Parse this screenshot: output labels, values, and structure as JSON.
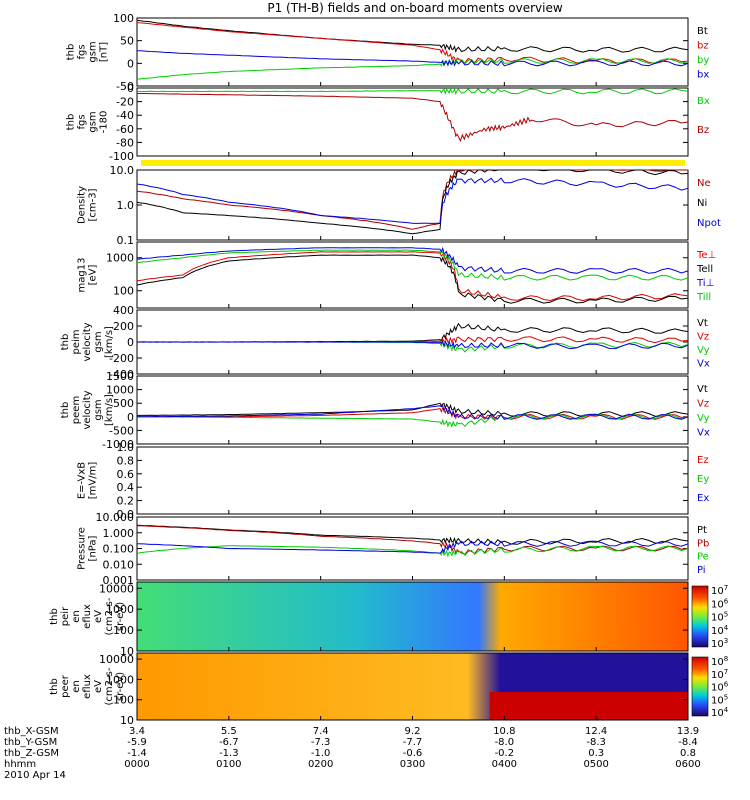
{
  "title": "P1 (TH-B) fields and on-board moments overview",
  "colors": {
    "black": "#000000",
    "red": "#dd0000",
    "green": "#00cc00",
    "blue": "#0000dd",
    "darkred": "#aa0000",
    "yellow": "#ffee00"
  },
  "footer": {
    "row_labels": [
      "thb_X-GSM",
      "thb_Y-GSM",
      "thb_Z-GSM",
      "hhmm",
      "2010 Apr 14"
    ],
    "columns": [
      {
        "x": "3.4",
        "y": "-5.9",
        "z": "-1.4",
        "t": "0000"
      },
      {
        "x": "5.5",
        "y": "-6.7",
        "z": "-1.3",
        "t": "0100"
      },
      {
        "x": "7.4",
        "y": "-7.3",
        "z": "-1.0",
        "t": "0200"
      },
      {
        "x": "9.2",
        "y": "-7.7",
        "z": "-0.6",
        "t": "0300"
      },
      {
        "x": "10.8",
        "y": "-8.0",
        "z": "-0.2",
        "t": "0400"
      },
      {
        "x": "12.4",
        "y": "-8.3",
        "z": "0.3",
        "t": "0500"
      },
      {
        "x": "13.9",
        "y": "-8.4",
        "z": "0.8",
        "t": "0600"
      }
    ]
  },
  "colorbar_ticks": [
    "10",
    "10",
    "10",
    "10",
    "10"
  ],
  "colorbar_exps_a": [
    "7",
    "6",
    "5",
    "4",
    "3"
  ],
  "colorbar_exps_b": [
    "8",
    "7",
    "6",
    "5",
    "4"
  ],
  "chart_data": [
    {
      "type": "line",
      "ylabel": [
        "thb",
        "fgs",
        "gsm",
        "[nT]"
      ],
      "ylim": [
        -50,
        100
      ],
      "yticks": [
        "100",
        "50",
        "0",
        "-50"
      ],
      "legend": [
        {
          "name": "Bt",
          "color": "#000000"
        },
        {
          "name": "bz",
          "color": "#dd0000"
        },
        {
          "name": "by",
          "color": "#00cc00"
        },
        {
          "name": "bx",
          "color": "#0000dd"
        }
      ],
      "series": [
        {
          "name": "Bt",
          "x": [
            0,
            0.5,
            1,
            2,
            3,
            3.3,
            3.5,
            4,
            5,
            6
          ],
          "y": [
            95,
            82,
            72,
            55,
            42,
            40,
            30,
            32,
            30,
            30
          ]
        },
        {
          "name": "bz",
          "x": [
            0,
            0.5,
            1,
            2,
            3,
            3.3,
            3.5,
            4,
            5,
            6
          ],
          "y": [
            90,
            80,
            70,
            55,
            40,
            30,
            5,
            10,
            5,
            5
          ]
        },
        {
          "name": "by",
          "x": [
            0,
            0.5,
            1,
            2,
            3,
            3.3,
            3.5,
            4,
            5,
            6
          ],
          "y": [
            -35,
            -25,
            -18,
            -10,
            -5,
            -2,
            5,
            5,
            5,
            5
          ]
        },
        {
          "name": "bx",
          "x": [
            0,
            0.5,
            1,
            2,
            3,
            3.3,
            3.5,
            4,
            5,
            6
          ],
          "y": [
            28,
            22,
            18,
            10,
            5,
            2,
            0,
            0,
            0,
            0
          ]
        }
      ]
    },
    {
      "type": "line",
      "ylabel": [
        "thb",
        "fgs",
        "gsm",
        "-180"
      ],
      "ylim": [
        -100,
        0
      ],
      "yticks": [
        "0",
        "-20",
        "-40",
        "-60",
        "-80",
        "-100"
      ],
      "legend": [
        {
          "name": "Bx",
          "color": "#00cc00"
        },
        {
          "name": "Bz",
          "color": "#aa0000"
        }
      ],
      "series": [
        {
          "name": "Bx",
          "x": [
            0,
            1,
            2,
            3,
            3.3,
            3.5,
            4,
            5,
            6
          ],
          "y": [
            -5,
            -5,
            -5,
            -4,
            -4,
            -5,
            -5,
            -5,
            -5
          ]
        },
        {
          "name": "Bz",
          "x": [
            0,
            1,
            2,
            3,
            3.3,
            3.5,
            3.8,
            4,
            4.3,
            5,
            6
          ],
          "y": [
            -8,
            -10,
            -12,
            -15,
            -20,
            -75,
            -60,
            -58,
            -45,
            -55,
            -50
          ]
        }
      ]
    },
    {
      "type": "line",
      "ylabel": [
        "Density",
        "[cm-3]"
      ],
      "ylim": [
        0.1,
        10
      ],
      "yticks": [
        "10.0",
        "1.0",
        "0.1"
      ],
      "legend": [
        {
          "name": "Ne",
          "color": "#aa0000"
        },
        {
          "name": "Ni",
          "color": "#000000"
        },
        {
          "name": "Npot",
          "color": "#0000dd"
        }
      ],
      "series": [
        {
          "name": "Ne",
          "x": [
            0,
            0.5,
            1,
            2,
            3,
            3.3,
            3.5,
            4,
            5,
            6
          ],
          "y": [
            2.5,
            1.5,
            1.0,
            0.5,
            0.2,
            0.3,
            10,
            15,
            12,
            10
          ]
        },
        {
          "name": "Ni",
          "x": [
            0,
            0.5,
            1,
            2,
            3,
            3.3,
            3.5,
            4,
            5,
            6
          ],
          "y": [
            1.2,
            0.6,
            0.5,
            0.3,
            0.15,
            0.2,
            8,
            12,
            10,
            8
          ]
        },
        {
          "name": "Npot",
          "x": [
            0,
            0.5,
            1,
            2,
            3,
            3.3,
            3.5,
            4,
            5,
            6
          ],
          "y": [
            4,
            2,
            1.2,
            0.5,
            0.3,
            0.3,
            5,
            5,
            4,
            3
          ]
        }
      ]
    },
    {
      "type": "line",
      "ylabel": [
        "mag13",
        "[eV]"
      ],
      "ylim": [
        30,
        3000
      ],
      "yticks": [
        "1000",
        "100"
      ],
      "legend": [
        {
          "name": "Te⊥",
          "color": "#dd0000"
        },
        {
          "name": "Tell",
          "color": "#000000"
        },
        {
          "name": "Ti⊥",
          "color": "#0000dd"
        },
        {
          "name": "Till",
          "color": "#00cc00"
        }
      ],
      "series": [
        {
          "name": "Te⊥",
          "x": [
            0,
            0.5,
            1,
            2,
            3,
            3.3,
            3.5,
            4,
            5,
            6
          ],
          "y": [
            200,
            300,
            1000,
            1500,
            1500,
            1400,
            100,
            60,
            60,
            70
          ]
        },
        {
          "name": "Tell",
          "x": [
            0,
            0.5,
            1,
            2,
            3,
            3.3,
            3.5,
            4,
            5,
            6
          ],
          "y": [
            150,
            250,
            800,
            1200,
            1200,
            1000,
            80,
            50,
            50,
            60
          ]
        },
        {
          "name": "Ti⊥",
          "x": [
            0,
            0.5,
            1,
            2,
            3,
            3.3,
            3.5,
            4,
            5,
            6
          ],
          "y": [
            900,
            1200,
            1600,
            2000,
            2000,
            1800,
            500,
            400,
            400,
            400
          ]
        },
        {
          "name": "Till",
          "x": [
            0,
            0.5,
            1,
            2,
            3,
            3.3,
            3.5,
            4,
            5,
            6
          ],
          "y": [
            700,
            1000,
            1400,
            1700,
            1700,
            1500,
            300,
            250,
            250,
            250
          ]
        }
      ]
    },
    {
      "type": "line",
      "ylabel": [
        "thb",
        "peim",
        "velocity",
        "gsm",
        "[km/s]"
      ],
      "ylim": [
        -400,
        400
      ],
      "yticks": [
        "400",
        "200",
        "0",
        "-200",
        "-400"
      ],
      "legend": [
        {
          "name": "Vt",
          "color": "#000000"
        },
        {
          "name": "Vz",
          "color": "#dd0000"
        },
        {
          "name": "Vy",
          "color": "#00cc00"
        },
        {
          "name": "Vx",
          "color": "#0000dd"
        }
      ],
      "series": [
        {
          "name": "Vt",
          "x": [
            0,
            1,
            2,
            3,
            3.3,
            3.5,
            4,
            5,
            6
          ],
          "y": [
            0,
            0,
            5,
            10,
            30,
            200,
            150,
            150,
            130
          ]
        },
        {
          "name": "Vz",
          "x": [
            0,
            1,
            2,
            3,
            3.3,
            3.5,
            4,
            5,
            6
          ],
          "y": [
            0,
            0,
            0,
            5,
            10,
            30,
            40,
            30,
            20
          ]
        },
        {
          "name": "Vy",
          "x": [
            0,
            1,
            2,
            3,
            3.3,
            3.5,
            4,
            5,
            6
          ],
          "y": [
            0,
            0,
            0,
            -5,
            -20,
            -100,
            -50,
            -40,
            -30
          ]
        },
        {
          "name": "Vx",
          "x": [
            0,
            1,
            2,
            3,
            3.3,
            3.5,
            4,
            5,
            6
          ],
          "y": [
            0,
            0,
            0,
            0,
            -10,
            -50,
            -40,
            -60,
            -40
          ]
        }
      ]
    },
    {
      "type": "line",
      "ylabel": [
        "thb",
        "peem",
        "velocity",
        "gsm",
        "[km/s]"
      ],
      "ylim": [
        -1000,
        1500
      ],
      "yticks": [
        "1500",
        "1000",
        "500",
        "0",
        "-500",
        "-1000"
      ],
      "legend": [
        {
          "name": "Vt",
          "color": "#000000"
        },
        {
          "name": "Vz",
          "color": "#dd0000"
        },
        {
          "name": "Vy",
          "color": "#00cc00"
        },
        {
          "name": "Vx",
          "color": "#0000dd"
        }
      ],
      "series": [
        {
          "name": "Vt",
          "x": [
            0,
            1,
            2,
            3,
            3.3,
            3.5,
            4,
            5,
            6
          ],
          "y": [
            50,
            80,
            150,
            250,
            500,
            200,
            100,
            100,
            100
          ]
        },
        {
          "name": "Vz",
          "x": [
            0,
            1,
            2,
            3,
            3.3,
            3.5,
            4,
            5,
            6
          ],
          "y": [
            0,
            0,
            50,
            150,
            300,
            0,
            0,
            0,
            0
          ]
        },
        {
          "name": "Vy",
          "x": [
            0,
            1,
            2,
            3,
            3.3,
            3.5,
            4,
            5,
            6
          ],
          "y": [
            0,
            -20,
            -50,
            -80,
            -200,
            -300,
            0,
            0,
            0
          ]
        },
        {
          "name": "Vx",
          "x": [
            0,
            1,
            2,
            3,
            3.3,
            3.5,
            4,
            5,
            6
          ],
          "y": [
            0,
            30,
            100,
            300,
            400,
            0,
            0,
            0,
            0
          ]
        }
      ]
    },
    {
      "type": "line",
      "ylabel": [
        "E=-VxB",
        "[mV/m]"
      ],
      "ylim": [
        0,
        1
      ],
      "yticks": [
        "1.0",
        "0.8",
        "0.6",
        "0.4",
        "0.2",
        "0.0"
      ],
      "legend": [
        {
          "name": "Ez",
          "color": "#dd0000"
        },
        {
          "name": "Ey",
          "color": "#00cc00"
        },
        {
          "name": "Ex",
          "color": "#0000dd"
        }
      ],
      "series": []
    },
    {
      "type": "line",
      "ylabel": [
        "Pressure",
        "[nPa]"
      ],
      "ylim": [
        0.001,
        10
      ],
      "yticks": [
        "10.000",
        "1.000",
        "0.100",
        "0.010",
        "0.001"
      ],
      "legend": [
        {
          "name": "Pt",
          "color": "#000000"
        },
        {
          "name": "Pb",
          "color": "#aa0000"
        },
        {
          "name": "Pe",
          "color": "#00cc00"
        },
        {
          "name": "Pi",
          "color": "#0000dd"
        }
      ],
      "series": [
        {
          "name": "Pt",
          "x": [
            0,
            1,
            2,
            3,
            3.3,
            3.5,
            4,
            5,
            6
          ],
          "y": [
            3,
            1.5,
            0.7,
            0.45,
            0.35,
            0.3,
            0.25,
            0.3,
            0.3
          ]
        },
        {
          "name": "Pb",
          "x": [
            0,
            1,
            2,
            3,
            3.3,
            3.5,
            4,
            5,
            6
          ],
          "y": [
            2.8,
            1.4,
            0.6,
            0.3,
            0.2,
            0.05,
            0.1,
            0.1,
            0.1
          ]
        },
        {
          "name": "Pe",
          "x": [
            0,
            0.5,
            1,
            2,
            3,
            3.3,
            3.5,
            4,
            5,
            6
          ],
          "y": [
            0.05,
            0.1,
            0.15,
            0.12,
            0.07,
            0.05,
            0.05,
            0.08,
            0.1,
            0.1
          ]
        },
        {
          "name": "Pi",
          "x": [
            0,
            1,
            2,
            3,
            3.3,
            3.5,
            4,
            5,
            6
          ],
          "y": [
            0.2,
            0.1,
            0.08,
            0.06,
            0.05,
            0.2,
            0.2,
            0.2,
            0.2
          ]
        }
      ]
    },
    {
      "type": "heatmap",
      "ylabel": [
        "thb",
        "peir",
        "en",
        "eflux",
        "eV",
        "(cm2-s-",
        "sr-eV)"
      ],
      "ylim": [
        10,
        20000
      ],
      "yticks": [
        "10000",
        "1000",
        "100",
        "10"
      ]
    },
    {
      "type": "heatmap",
      "ylabel": [
        "thb",
        "peer",
        "en",
        "eflux",
        "eV",
        "(cm2-s-",
        "sr-eV)"
      ],
      "ylim": [
        10,
        20000
      ],
      "yticks": [
        "10000",
        "1000",
        "100",
        "10"
      ]
    }
  ]
}
